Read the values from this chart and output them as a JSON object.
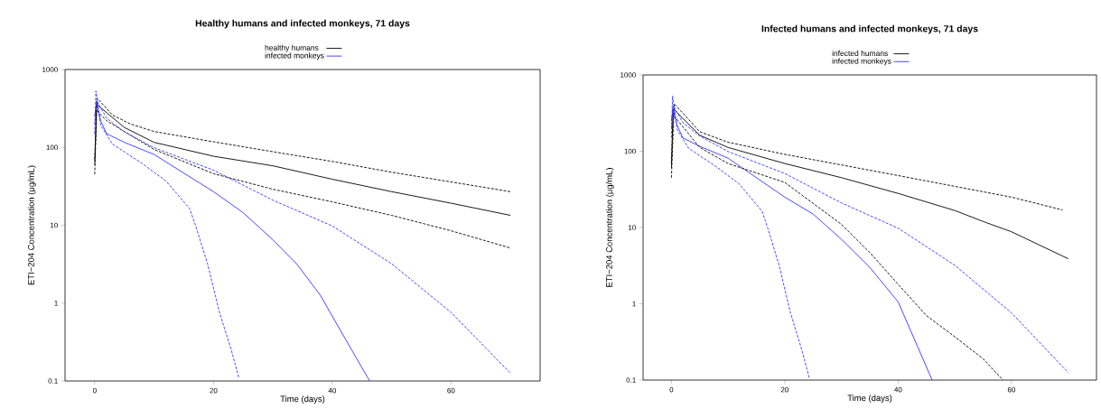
{
  "chart_data": [
    {
      "type": "line",
      "title": "Healthy humans and infected monkeys, 71 days",
      "xlabel": "Time (days)",
      "ylabel": "ETI−204 Concentration (μg/mL)",
      "log": "y",
      "legend": "top",
      "xlim": [
        -5,
        75
      ],
      "ylim": [
        0.1,
        1000
      ],
      "xticks": [
        0,
        20,
        40,
        60
      ],
      "yticks": [
        0.1,
        1,
        10,
        100,
        1000
      ],
      "series": [
        {
          "name": "healthy humans",
          "color": "#000000",
          "line_style": "solid",
          "x": [
            0,
            0.3,
            2,
            5,
            10,
            20,
            30,
            40,
            50,
            60,
            70
          ],
          "values": [
            60,
            360,
            280,
            180,
            116,
            77,
            58,
            39,
            27,
            19.2,
            13.4
          ]
        },
        {
          "name": "infected monkeys",
          "color": "#3333ff",
          "line_style": "solid",
          "x": [
            0,
            0.3,
            1,
            2,
            5,
            10,
            20,
            25,
            30,
            34,
            38,
            40,
            44,
            46.3
          ],
          "values": [
            250,
            370,
            220,
            150,
            116,
            81,
            27,
            14.5,
            6.5,
            3.2,
            1.26,
            0.68,
            0.2,
            0.1
          ]
        },
        {
          "color": "#000000",
          "line_style": "dashed",
          "x": [
            0,
            0.4,
            3,
            6,
            10,
            20,
            30,
            40,
            50,
            60,
            70
          ],
          "values": [
            45,
            430,
            260,
            200,
            160,
            118,
            88,
            66,
            48,
            36,
            27
          ]
        },
        {
          "color": "#000000",
          "line_style": "dashed",
          "x": [
            0,
            0.3,
            2,
            5,
            10,
            20,
            30,
            40,
            50,
            60,
            70
          ],
          "values": [
            70,
            300,
            220,
            160,
            94,
            46,
            29,
            20,
            13.4,
            8.5,
            5.1
          ]
        },
        {
          "color": "#3333ff",
          "line_style": "dashed",
          "x": [
            0,
            0.3,
            2,
            5,
            10,
            20,
            30,
            40,
            50,
            60,
            70
          ],
          "values": [
            200,
            400,
            238,
            158,
            99,
            51,
            21,
            9.8,
            3.2,
            0.76,
            0.126
          ]
        },
        {
          "color": "#3333ff",
          "line_style": "dashed",
          "x": [
            0,
            0.2,
            1,
            3,
            8,
            12,
            16,
            17,
            19,
            21,
            23,
            24.3
          ],
          "values": [
            150,
            530,
            193,
            110,
            62,
            37,
            16.3,
            9.8,
            3.2,
            0.76,
            0.25,
            0.108
          ]
        }
      ]
    },
    {
      "type": "line",
      "title": "Infected humans and infected monkeys, 71 days",
      "xlabel": "Time (days)",
      "ylabel": "ETI−204 Concentration (μg/mL)",
      "log": "y",
      "legend": "top",
      "xlim": [
        -5,
        75
      ],
      "ylim": [
        0.1,
        1000
      ],
      "xticks": [
        0,
        20,
        40,
        60
      ],
      "yticks": [
        0.1,
        1,
        10,
        100,
        1000
      ],
      "series": [
        {
          "name": "infected humans",
          "color": "#000000",
          "line_style": "solid",
          "x": [
            0,
            0.3,
            5,
            10,
            20,
            30,
            40,
            50,
            55,
            60,
            70
          ],
          "values": [
            60,
            360,
            162,
            112,
            69,
            45,
            28,
            16.7,
            12,
            8.8,
            3.9
          ]
        },
        {
          "name": "infected monkeys",
          "color": "#3333ff",
          "line_style": "solid",
          "x": [
            0,
            0.3,
            1,
            2,
            5,
            10,
            20,
            25,
            30,
            35,
            40,
            46
          ],
          "values": [
            250,
            370,
            220,
            150,
            116,
            81,
            25,
            15,
            7,
            3.0,
            1.06,
            0.1
          ]
        },
        {
          "color": "#000000",
          "line_style": "dashed",
          "x": [
            0,
            0.5,
            5,
            10,
            20,
            40,
            60,
            69
          ],
          "values": [
            45,
            420,
            180,
            131,
            91,
            48,
            25,
            17
          ]
        },
        {
          "color": "#000000",
          "line_style": "dashed",
          "x": [
            0,
            0.3,
            5,
            10,
            20,
            30,
            35,
            40,
            45,
            50,
            55,
            58.5
          ],
          "values": [
            70,
            300,
            112,
            69,
            39,
            11,
            4.7,
            1.8,
            0.7,
            0.37,
            0.19,
            0.1
          ]
        },
        {
          "color": "#3333ff",
          "line_style": "dashed",
          "x": [
            0,
            0.3,
            2,
            5,
            10,
            20,
            30,
            40,
            50,
            60,
            70
          ],
          "values": [
            200,
            400,
            238,
            158,
            99,
            51,
            21,
            9.8,
            3.2,
            0.76,
            0.126
          ]
        },
        {
          "color": "#3333ff",
          "line_style": "dashed",
          "x": [
            0,
            0.2,
            1,
            3,
            8,
            12,
            16,
            17,
            19,
            21,
            23,
            24.3
          ],
          "values": [
            150,
            530,
            193,
            110,
            62,
            37,
            16.3,
            9.8,
            3.2,
            0.76,
            0.25,
            0.108
          ]
        }
      ]
    }
  ]
}
